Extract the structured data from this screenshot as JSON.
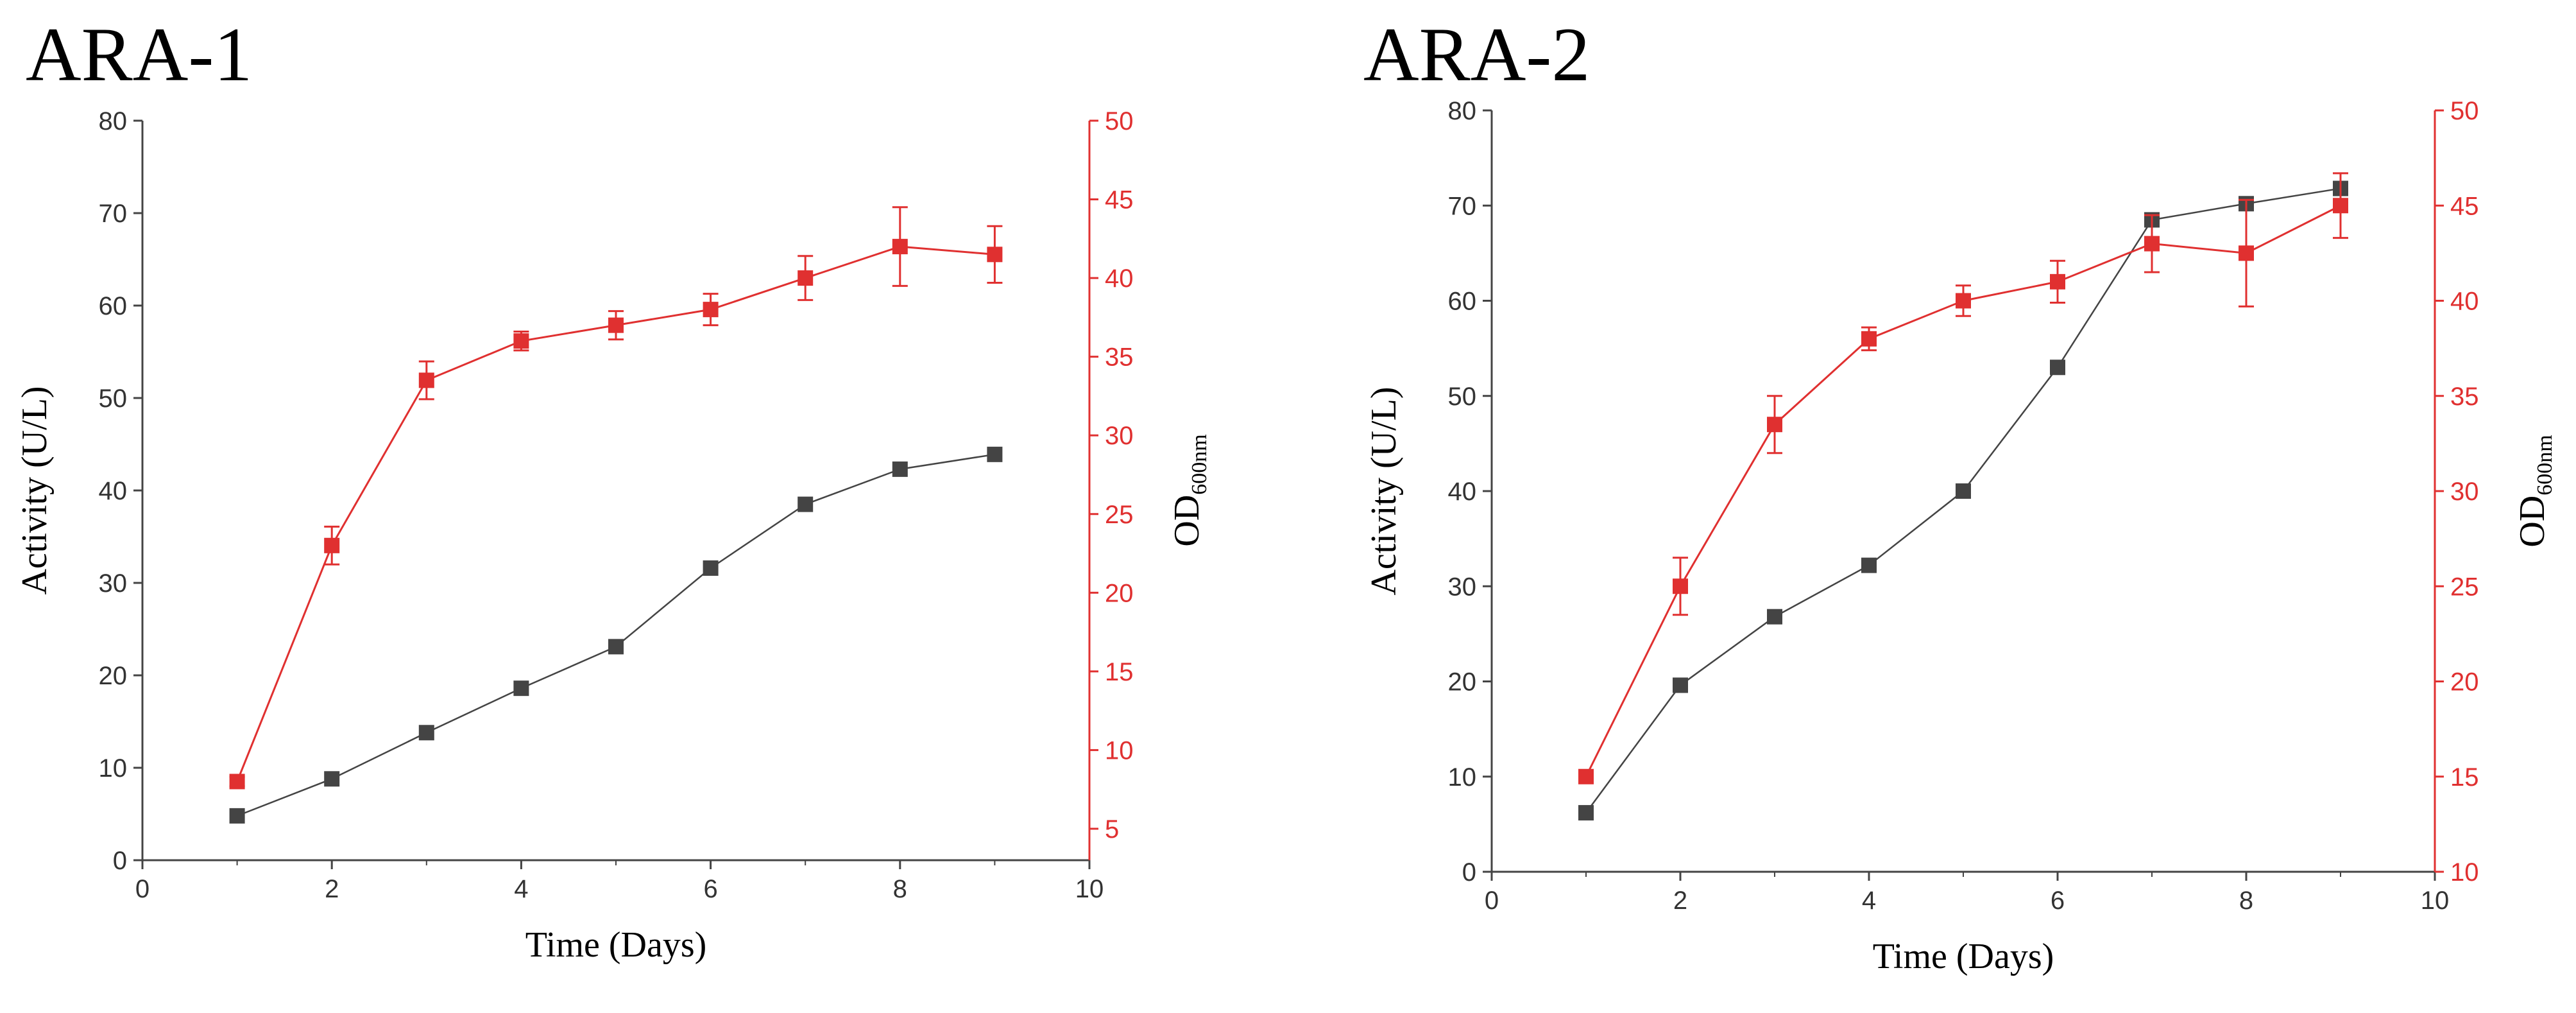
{
  "chart_data": [
    {
      "type": "line",
      "title": "ARA-1",
      "xlabel": "Time (Days)",
      "ylabel": "Activity (U/L)",
      "y2label": "OD",
      "y2label_sub": "600nm",
      "xlim": [
        0,
        10
      ],
      "ylim": [
        0,
        80
      ],
      "y2lim": [
        3,
        50
      ],
      "x_ticks": [
        0,
        2,
        4,
        6,
        8,
        10
      ],
      "y_ticks": [
        0,
        10,
        20,
        30,
        40,
        50,
        60,
        70,
        80
      ],
      "y2_ticks": [
        5,
        10,
        15,
        20,
        25,
        30,
        35,
        40,
        45,
        50
      ],
      "series": [
        {
          "name": "Activity",
          "axis": "left",
          "color": "#444444",
          "x": [
            1,
            2,
            3,
            4,
            5,
            6,
            7,
            8,
            9
          ],
          "values": [
            4.8,
            8.8,
            13.8,
            18.6,
            23.1,
            31.6,
            38.5,
            42.3,
            43.9
          ],
          "errors": []
        },
        {
          "name": "OD600nm",
          "axis": "right",
          "color": "#e03030",
          "x": [
            1,
            2,
            3,
            4,
            5,
            6,
            7,
            8,
            9
          ],
          "values": [
            8.0,
            23.0,
            33.5,
            36.0,
            37.0,
            38.0,
            40.0,
            42.0,
            41.5
          ],
          "errors": [
            0.3,
            1.2,
            1.2,
            0.6,
            0.9,
            1.0,
            1.4,
            2.5,
            1.8
          ]
        }
      ]
    },
    {
      "type": "line",
      "title": "ARA-2",
      "xlabel": "Time (Days)",
      "ylabel": "Activity (U/L)",
      "y2label": "OD",
      "y2label_sub": "600nm",
      "xlim": [
        0,
        10
      ],
      "ylim": [
        0,
        80
      ],
      "y2lim": [
        10,
        50
      ],
      "x_ticks": [
        0,
        2,
        4,
        6,
        8,
        10
      ],
      "y_ticks": [
        0,
        10,
        20,
        30,
        40,
        50,
        60,
        70,
        80
      ],
      "y2_ticks": [
        10,
        15,
        20,
        25,
        30,
        35,
        40,
        45,
        50
      ],
      "series": [
        {
          "name": "Activity",
          "axis": "left",
          "color": "#444444",
          "x": [
            1,
            2,
            3,
            4,
            5,
            6,
            7,
            8,
            9
          ],
          "values": [
            6.2,
            19.6,
            26.8,
            32.2,
            40.0,
            53.0,
            68.5,
            70.2,
            71.8
          ],
          "errors": []
        },
        {
          "name": "OD600nm",
          "axis": "right",
          "color": "#e03030",
          "x": [
            1,
            2,
            3,
            4,
            5,
            6,
            7,
            8,
            9
          ],
          "values": [
            15.0,
            25.0,
            33.5,
            38.0,
            40.0,
            41.0,
            43.0,
            42.5,
            45.0
          ],
          "errors": [
            0.3,
            1.5,
            1.5,
            0.6,
            0.8,
            1.1,
            1.5,
            2.8,
            1.7
          ]
        }
      ]
    }
  ]
}
